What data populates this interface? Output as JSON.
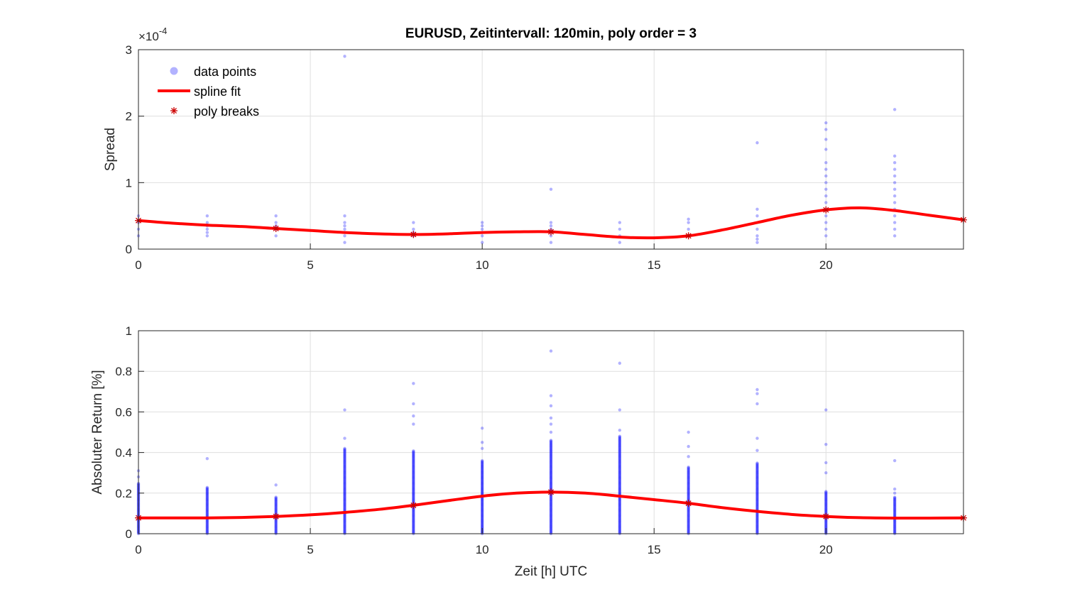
{
  "chart_data": [
    {
      "type": "scatter",
      "title": "EURUSD, Zeitintervall: 120min, poly order = 3",
      "ylabel": "Spread",
      "y_exponent_label": "×10",
      "y_exponent": "-4",
      "xlim": [
        0,
        24
      ],
      "ylim": [
        0,
        3
      ],
      "xticks": [
        "0",
        "5",
        "10",
        "15",
        "20"
      ],
      "yticks": [
        "0",
        "1",
        "2",
        "3"
      ],
      "grid": true,
      "legend_placement": "top-left",
      "legend": [
        {
          "label": "data points",
          "marker": "circle"
        },
        {
          "label": "spline fit",
          "marker": "line"
        },
        {
          "label": "poly breaks",
          "marker": "asterisk"
        }
      ],
      "colors": {
        "points": "#0000ff",
        "fit": "#ff0000",
        "breaks": "#cc0000"
      },
      "series": [
        {
          "name": "data points",
          "points": [
            {
              "x": 0,
              "y": [
                0.2,
                0.3,
                0.4,
                0.5
              ]
            },
            {
              "x": 2,
              "y": [
                0.2,
                0.25,
                0.3,
                0.35,
                0.4,
                0.5
              ]
            },
            {
              "x": 4,
              "y": [
                0.2,
                0.3,
                0.35,
                0.4,
                0.5
              ]
            },
            {
              "x": 6,
              "y": [
                0.1,
                0.2,
                0.25,
                0.3,
                0.35,
                0.4,
                0.5,
                2.9
              ]
            },
            {
              "x": 8,
              "y": [
                0.2,
                0.25,
                0.3,
                0.4
              ]
            },
            {
              "x": 10,
              "y": [
                0.1,
                0.2,
                0.25,
                0.3,
                0.35,
                0.4
              ]
            },
            {
              "x": 12,
              "y": [
                0.1,
                0.2,
                0.25,
                0.3,
                0.35,
                0.4,
                0.9
              ]
            },
            {
              "x": 14,
              "y": [
                0.1,
                0.2,
                0.3,
                0.4
              ]
            },
            {
              "x": 16,
              "y": [
                0.2,
                0.3,
                0.4,
                0.45
              ]
            },
            {
              "x": 18,
              "y": [
                0.1,
                0.15,
                0.2,
                0.3,
                0.5,
                0.6,
                1.6
              ]
            },
            {
              "x": 20,
              "y": [
                0.2,
                0.3,
                0.4,
                0.5,
                0.6,
                0.7,
                0.8,
                0.9,
                1.0,
                1.1,
                1.2,
                1.3,
                1.5,
                1.65,
                1.8,
                1.9
              ]
            },
            {
              "x": 22,
              "y": [
                0.2,
                0.3,
                0.4,
                0.5,
                0.6,
                0.7,
                0.8,
                0.9,
                1.0,
                1.1,
                1.2,
                1.3,
                1.4,
                2.1
              ]
            }
          ]
        },
        {
          "name": "spline fit",
          "x": [
            0,
            1,
            2,
            3,
            4,
            5,
            6,
            7,
            8,
            9,
            10,
            11,
            12,
            13,
            14,
            15,
            16,
            17,
            18,
            19,
            20,
            21,
            22,
            23,
            24
          ],
          "y": [
            0.43,
            0.39,
            0.36,
            0.34,
            0.31,
            0.28,
            0.25,
            0.23,
            0.22,
            0.23,
            0.25,
            0.26,
            0.26,
            0.22,
            0.18,
            0.17,
            0.2,
            0.29,
            0.4,
            0.51,
            0.59,
            0.62,
            0.58,
            0.51,
            0.44
          ]
        },
        {
          "name": "poly breaks",
          "x": [
            0,
            4,
            8,
            12,
            16,
            20,
            24
          ],
          "y": [
            0.43,
            0.31,
            0.22,
            0.26,
            0.2,
            0.59,
            0.44
          ]
        }
      ]
    },
    {
      "type": "scatter",
      "title": "",
      "xlabel": "Zeit [h] UTC",
      "ylabel": "Absoluter Return [%]",
      "xlim": [
        0,
        24
      ],
      "ylim": [
        0,
        1
      ],
      "xticks": [
        "0",
        "5",
        "10",
        "15",
        "20"
      ],
      "yticks": [
        "0",
        "0.2",
        "0.4",
        "0.6",
        "0.8",
        "1"
      ],
      "grid": true,
      "colors": {
        "points": "#0000ff",
        "fit": "#ff0000",
        "breaks": "#cc0000"
      },
      "series": [
        {
          "name": "data points",
          "points": [
            {
              "x": 0,
              "max": 0.25,
              "outliers": [
                0.28,
                0.31
              ]
            },
            {
              "x": 2,
              "max": 0.23,
              "outliers": [
                0.37
              ]
            },
            {
              "x": 4,
              "max": 0.18,
              "outliers": [
                0.24
              ]
            },
            {
              "x": 6,
              "max": 0.42,
              "outliers": [
                0.47,
                0.61
              ]
            },
            {
              "x": 8,
              "max": 0.41,
              "outliers": [
                0.54,
                0.58,
                0.64,
                0.74
              ]
            },
            {
              "x": 10,
              "max": 0.36,
              "outliers": [
                0.42,
                0.45,
                0.52
              ]
            },
            {
              "x": 12,
              "max": 0.46,
              "outliers": [
                0.5,
                0.54,
                0.57,
                0.63,
                0.68,
                0.9
              ]
            },
            {
              "x": 14,
              "max": 0.48,
              "outliers": [
                0.51,
                0.61,
                0.84
              ]
            },
            {
              "x": 16,
              "max": 0.33,
              "outliers": [
                0.38,
                0.43,
                0.5
              ]
            },
            {
              "x": 18,
              "max": 0.35,
              "outliers": [
                0.41,
                0.47,
                0.64,
                0.69,
                0.71
              ]
            },
            {
              "x": 20,
              "max": 0.21,
              "outliers": [
                0.3,
                0.35,
                0.44,
                0.61
              ]
            },
            {
              "x": 22,
              "max": 0.18,
              "outliers": [
                0.2,
                0.22,
                0.36
              ]
            }
          ]
        },
        {
          "name": "spline fit",
          "x": [
            0,
            1,
            2,
            3,
            4,
            5,
            6,
            7,
            8,
            9,
            10,
            11,
            12,
            13,
            14,
            15,
            16,
            17,
            18,
            19,
            20,
            21,
            22,
            23,
            24
          ],
          "y": [
            0.078,
            0.078,
            0.078,
            0.08,
            0.085,
            0.093,
            0.105,
            0.12,
            0.14,
            0.163,
            0.185,
            0.2,
            0.205,
            0.2,
            0.185,
            0.168,
            0.15,
            0.128,
            0.11,
            0.095,
            0.085,
            0.079,
            0.077,
            0.077,
            0.078
          ]
        },
        {
          "name": "poly breaks",
          "x": [
            0,
            4,
            8,
            12,
            16,
            20,
            24
          ],
          "y": [
            0.078,
            0.085,
            0.14,
            0.205,
            0.15,
            0.085,
            0.078
          ]
        }
      ]
    }
  ]
}
